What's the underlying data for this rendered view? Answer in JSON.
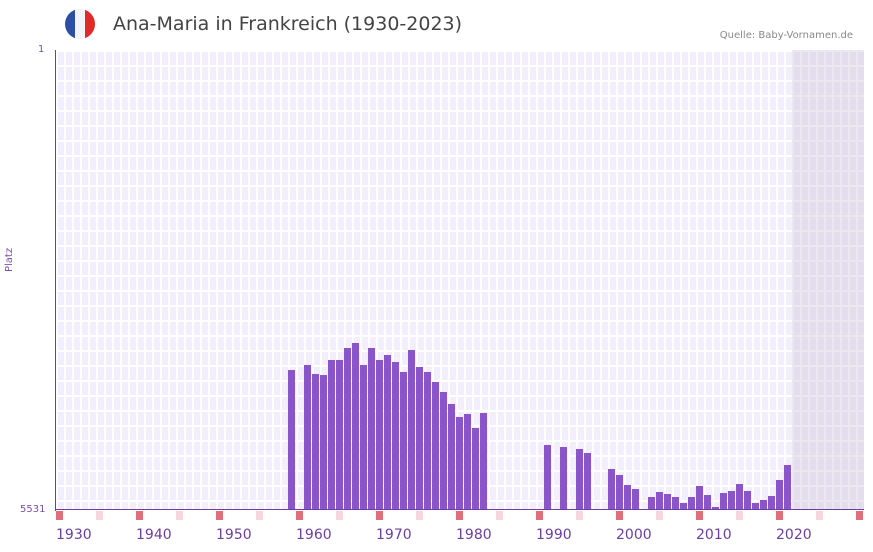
{
  "header": {
    "title": "Ana-Maria in Frankreich (1930-2023)",
    "source": "Quelle: Baby-Vornamen.de",
    "flag_colors": [
      "#2b4fa3",
      "#f4f4f8",
      "#e02a2a"
    ]
  },
  "colors": {
    "bar": "#8a55c8",
    "axis": "#6b3fa0",
    "tick_decade": "#e06f7a",
    "tick_half": "#f5d6de"
  },
  "chart_data": {
    "type": "bar",
    "title": "Ana-Maria in Frankreich (1930-2023)",
    "xlabel": "",
    "ylabel": "Platz",
    "y_inverted": true,
    "ylim": [
      1,
      5531
    ],
    "x_ticks": [
      "1930",
      "1940",
      "1950",
      "1960",
      "1970",
      "1980",
      "1990",
      "2000",
      "2010",
      "2020"
    ],
    "categories": [
      1959,
      1961,
      1962,
      1963,
      1964,
      1965,
      1966,
      1967,
      1968,
      1969,
      1970,
      1971,
      1972,
      1973,
      1974,
      1975,
      1976,
      1977,
      1978,
      1979,
      1980,
      1981,
      1982,
      1983,
      1991,
      1993,
      1995,
      1996,
      1999,
      2000,
      2001,
      2002,
      2004,
      2005,
      2006,
      2007,
      2008,
      2009,
      2010,
      2011,
      2012,
      2013,
      2014,
      2015,
      2016,
      2017,
      2018,
      2019,
      2020,
      2021
    ],
    "values": [
      3845,
      3785,
      3893,
      3905,
      3725,
      3725,
      3580,
      3520,
      3785,
      3580,
      3725,
      3665,
      3749,
      3869,
      3605,
      3809,
      3869,
      3990,
      4110,
      4254,
      4411,
      4375,
      4543,
      4363,
      4747,
      4771,
      4795,
      4843,
      5036,
      5108,
      5228,
      5277,
      5373,
      5313,
      5337,
      5373,
      5445,
      5373,
      5241,
      5349,
      5493,
      5325,
      5301,
      5217,
      5301,
      5445,
      5409,
      5361,
      5168,
      4988
    ],
    "shaded_from_year": 2022,
    "grid": true
  },
  "axis": {
    "y_top_label": "1",
    "y_bottom_label": "5531",
    "y_title": "Platz"
  }
}
